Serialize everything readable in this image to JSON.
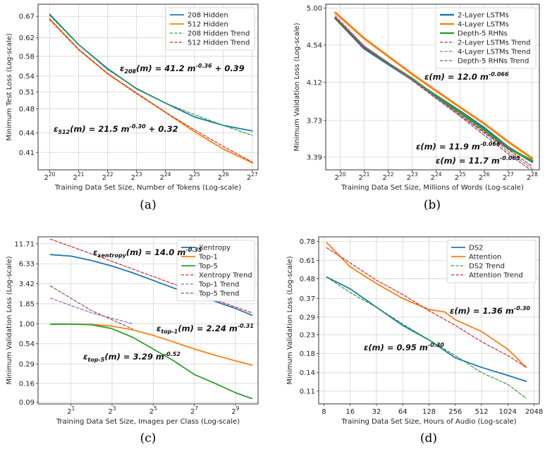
{
  "chart_data": [
    {
      "id": "a",
      "type": "line",
      "caption": "(a)",
      "xlabel": "Training Data Set Size, Number of Tokens (Log-scale)",
      "ylabel": "Minimum Test Loss (Log-scale)",
      "x_scale": "log2",
      "y_scale": "log",
      "xlim": [
        19.6,
        27.2
      ],
      "ylim": [
        0.385,
        0.7
      ],
      "xticks": [
        {
          "value": 20,
          "base": "2",
          "exp": "20"
        },
        {
          "value": 21,
          "base": "2",
          "exp": "21"
        },
        {
          "value": 22,
          "base": "2",
          "exp": "22"
        },
        {
          "value": 23,
          "base": "2",
          "exp": "23"
        },
        {
          "value": 24,
          "base": "2",
          "exp": "24"
        },
        {
          "value": 25,
          "base": "2",
          "exp": "25"
        },
        {
          "value": 26,
          "base": "2",
          "exp": "26"
        },
        {
          "value": 27,
          "base": "2",
          "exp": "27"
        }
      ],
      "yticks": [
        "0.67",
        "0.62",
        "0.58",
        "0.54",
        "0.51",
        "0.48",
        "0.44",
        "0.41"
      ],
      "legend": "top-right",
      "series": [
        {
          "name": "208 Hidden",
          "color": "#1f77b4",
          "dash": "solid",
          "width": 1.8,
          "x": [
            20,
            21,
            22,
            23,
            24,
            25,
            26,
            27
          ],
          "y": [
            0.675,
            0.605,
            0.555,
            0.516,
            0.49,
            0.466,
            0.452,
            0.443
          ]
        },
        {
          "name": "512 Hidden",
          "color": "#ff7f0e",
          "dash": "solid",
          "width": 1.8,
          "x": [
            20,
            21,
            22,
            23,
            24,
            25,
            26,
            27
          ],
          "y": [
            0.664,
            0.595,
            0.545,
            0.508,
            0.474,
            0.442,
            0.415,
            0.395
          ]
        },
        {
          "name": "208 Hidden Trend",
          "color": "#2ca02c",
          "dash": "dashed",
          "width": 1.2,
          "x": [
            20,
            21,
            22,
            23,
            24,
            25,
            26,
            27
          ],
          "y": [
            0.672,
            0.605,
            0.553,
            0.517,
            0.49,
            0.47,
            0.452,
            0.436
          ]
        },
        {
          "name": "512 Hidden Trend",
          "color": "#d62728",
          "dash": "dashed",
          "width": 1.2,
          "x": [
            20,
            21,
            22,
            23,
            24,
            25,
            26,
            27
          ],
          "y": [
            0.662,
            0.594,
            0.545,
            0.507,
            0.474,
            0.445,
            0.419,
            0.396
          ]
        }
      ],
      "annotations": [
        {
          "main": "ε",
          "sub": "208",
          "mid": "(m) = 41.2 m",
          "sup": "-0.36",
          "tail": " + 0.39"
        },
        {
          "main": "ε",
          "sub": "512",
          "mid": "(m) = 21.5 m",
          "sup": "-0.30",
          "tail": " + 0.32"
        }
      ]
    },
    {
      "id": "b",
      "type": "line",
      "caption": "(b)",
      "xlabel": "Training Data Set Size, Millions of Words (Log-scale)",
      "ylabel": "Minimum Validation Loss (Log-scale)",
      "x_scale": "log2",
      "y_scale": "log",
      "xlim": [
        19.4,
        28.3
      ],
      "ylim": [
        3.28,
        5.05
      ],
      "xticks": [
        {
          "value": 20,
          "base": "2",
          "exp": "20"
        },
        {
          "value": 21,
          "base": "2",
          "exp": "21"
        },
        {
          "value": 22,
          "base": "2",
          "exp": "22"
        },
        {
          "value": 23,
          "base": "2",
          "exp": "23"
        },
        {
          "value": 24,
          "base": "2",
          "exp": "24"
        },
        {
          "value": 25,
          "base": "2",
          "exp": "25"
        },
        {
          "value": 26,
          "base": "2",
          "exp": "26"
        },
        {
          "value": 27,
          "base": "2",
          "exp": "27"
        },
        {
          "value": 28,
          "base": "2",
          "exp": "28"
        }
      ],
      "yticks": [
        "5.00",
        "4.54",
        "4.12",
        "3.73",
        "3.39"
      ],
      "legend": "top-right",
      "series": [
        {
          "name": "2-Layer LSTMs",
          "color": "#1f77b4",
          "dash": "solid",
          "width": 3.0,
          "x": [
            19.8,
            21,
            22,
            23,
            24,
            25,
            26,
            27,
            28
          ],
          "y": [
            4.87,
            4.5,
            4.32,
            4.15,
            3.98,
            3.82,
            3.66,
            3.48,
            3.35
          ]
        },
        {
          "name": "4-Layer LSTMs",
          "color": "#ff7f0e",
          "dash": "solid",
          "width": 3.0,
          "x": [
            19.8,
            21,
            22,
            23,
            24,
            25,
            26,
            27,
            28
          ],
          "y": [
            4.94,
            4.62,
            4.41,
            4.21,
            4.03,
            3.86,
            3.7,
            3.53,
            3.38
          ]
        },
        {
          "name": "Depth-5 RHNs",
          "color": "#2ca02c",
          "dash": "solid",
          "width": 3.0,
          "x": [
            19.8,
            21,
            22,
            23,
            24,
            25,
            26,
            27,
            28
          ],
          "y": [
            4.87,
            4.52,
            4.33,
            4.16,
            3.97,
            3.81,
            3.64,
            3.47,
            3.36
          ]
        },
        {
          "name": "2-Layer LSTMs Trend",
          "color": "#d62728",
          "dash": "dashed",
          "width": 1.3,
          "x": [
            19.8,
            21,
            22,
            23,
            24,
            25,
            26,
            27,
            28
          ],
          "y": [
            4.87,
            4.51,
            4.33,
            4.15,
            3.96,
            3.79,
            3.62,
            3.46,
            3.31
          ]
        },
        {
          "name": "4-Layer LSTMs Trend",
          "color": "#9467bd",
          "dash": "dashed",
          "width": 1.3,
          "x": [
            19.8,
            21,
            22,
            23,
            24,
            25,
            26,
            27,
            28
          ],
          "y": [
            4.9,
            4.53,
            4.34,
            4.15,
            3.96,
            3.78,
            3.61,
            3.44,
            3.29
          ]
        },
        {
          "name": "Depth-5 RHNs Trend",
          "color": "#8c564b",
          "dash": "dashed",
          "width": 1.3,
          "x": [
            19.8,
            21,
            22,
            23,
            24,
            25,
            26,
            27,
            28
          ],
          "y": [
            4.88,
            4.52,
            4.33,
            4.14,
            3.95,
            3.77,
            3.59,
            3.42,
            3.27
          ]
        }
      ],
      "annotations": [
        {
          "main": "ε",
          "sub": "",
          "mid": "(m) = 12.0 m",
          "sup": "-0.066",
          "tail": ""
        },
        {
          "main": "ε",
          "sub": "",
          "mid": "(m) = 11.9 m",
          "sup": "-0.066",
          "tail": ""
        },
        {
          "main": "ε",
          "sub": "",
          "mid": "(m) = 11.7 m",
          "sup": "-0.065",
          "tail": ""
        }
      ]
    },
    {
      "id": "c",
      "type": "line",
      "caption": "(c)",
      "xlabel": "Training Data Set Size, Images per Class (Log-scale)",
      "ylabel": "Minimum Validation Loss (Log-scale)",
      "x_scale": "log2",
      "y_scale": "log",
      "xlim": [
        -0.6,
        10.1
      ],
      "ylim": [
        0.085,
        14.5
      ],
      "xticks": [
        {
          "value": 1,
          "base": "2",
          "exp": "1"
        },
        {
          "value": 3,
          "base": "2",
          "exp": "3"
        },
        {
          "value": 5,
          "base": "2",
          "exp": "5"
        },
        {
          "value": 7,
          "base": "2",
          "exp": "7"
        },
        {
          "value": 9,
          "base": "2",
          "exp": "9"
        }
      ],
      "yticks": [
        "11.71",
        "6.33",
        "3.42",
        "1.85",
        "1.00",
        "0.54",
        "0.29",
        "0.16",
        "0.09"
      ],
      "legend": "top-right",
      "series": [
        {
          "name": "Xentropy",
          "color": "#1f77b4",
          "dash": "solid",
          "width": 1.8,
          "x": [
            0,
            1,
            2,
            3,
            4,
            5,
            6,
            7,
            8,
            9,
            9.8
          ],
          "y": [
            8.4,
            8.0,
            7.0,
            5.9,
            4.8,
            3.8,
            3.0,
            2.5,
            2.0,
            1.6,
            1.3
          ]
        },
        {
          "name": "Top-1",
          "color": "#ff7f0e",
          "dash": "solid",
          "width": 1.8,
          "x": [
            0,
            1,
            2,
            3,
            4,
            5,
            6,
            7,
            8,
            9,
            9.8
          ],
          "y": [
            0.99,
            0.99,
            0.98,
            0.93,
            0.83,
            0.7,
            0.57,
            0.46,
            0.38,
            0.32,
            0.28
          ]
        },
        {
          "name": "Top-5",
          "color": "#2ca02c",
          "dash": "solid",
          "width": 1.8,
          "x": [
            0,
            1,
            2,
            3,
            4,
            5,
            6,
            7,
            8,
            9,
            9.8
          ],
          "y": [
            0.99,
            0.99,
            0.97,
            0.86,
            0.66,
            0.46,
            0.32,
            0.21,
            0.16,
            0.12,
            0.1
          ]
        },
        {
          "name": "Xentropy Trend",
          "color": "#d62728",
          "dash": "dashed",
          "width": 1.2,
          "x": [
            0,
            2,
            4,
            6,
            8,
            9.8
          ],
          "y": [
            13.5,
            8.6,
            5.4,
            3.4,
            2.1,
            1.4
          ]
        },
        {
          "name": "Top-1 Trend",
          "color": "#9467bd",
          "dash": "dashed",
          "width": 1.2,
          "x": [
            0,
            2,
            4
          ],
          "y": [
            2.2,
            1.4,
            1.0
          ]
        },
        {
          "name": "Top-5 Trend",
          "color": "#8c564b",
          "dash": "dashed",
          "width": 1.2,
          "x": [
            0,
            2,
            4
          ],
          "y": [
            3.2,
            1.5,
            0.85
          ]
        }
      ],
      "annotations": [
        {
          "main": "ε",
          "sub": "xentropy",
          "mid": "(m) = 14.0 m",
          "sup": "-0.35",
          "tail": ""
        },
        {
          "main": "ε",
          "sub": "top-1",
          "mid": "(m) = 2.24 m",
          "sup": "-0.31",
          "tail": ""
        },
        {
          "main": "ε",
          "sub": "top-5",
          "mid": "(m) = 3.29 m",
          "sup": "-0.52",
          "tail": ""
        }
      ]
    },
    {
      "id": "d",
      "type": "line",
      "caption": "(d)",
      "xlabel": "Training Data Set Size, Hours of Audio (Log-scale)",
      "ylabel": "Minimum Validation Loss (Log-scale)",
      "x_scale": "log2",
      "y_scale": "log",
      "xlim": [
        2.8,
        11.2
      ],
      "ylim": [
        0.093,
        0.83
      ],
      "xticks": [
        {
          "value": 3,
          "label": "8"
        },
        {
          "value": 4,
          "label": "16"
        },
        {
          "value": 5,
          "label": "32"
        },
        {
          "value": 6,
          "label": "64"
        },
        {
          "value": 7,
          "label": "128"
        },
        {
          "value": 8,
          "label": "256"
        },
        {
          "value": 9,
          "label": "512"
        },
        {
          "value": 10,
          "label": "1024"
        },
        {
          "value": 11,
          "label": "2048"
        }
      ],
      "yticks": [
        "0.78",
        "0.61",
        "0.48",
        "0.37",
        "0.29",
        "0.23",
        "0.18",
        "0.14",
        "0.11"
      ],
      "legend": "top-right",
      "series": [
        {
          "name": "DS2",
          "color": "#1f77b4",
          "dash": "solid",
          "width": 1.8,
          "x": [
            3.1,
            4,
            5,
            6,
            7,
            8,
            9,
            10,
            10.7
          ],
          "y": [
            0.49,
            0.42,
            0.33,
            0.26,
            0.215,
            0.17,
            0.15,
            0.135,
            0.125
          ]
        },
        {
          "name": "Attention",
          "color": "#ff7f0e",
          "dash": "solid",
          "width": 1.8,
          "x": [
            3.1,
            4,
            5,
            6,
            7,
            7.6,
            8,
            9,
            10,
            10.7
          ],
          "y": [
            0.77,
            0.56,
            0.45,
            0.37,
            0.32,
            0.31,
            0.28,
            0.24,
            0.19,
            0.15
          ]
        },
        {
          "name": "DS2 Trend",
          "color": "#2ca02c",
          "dash": "dashed",
          "width": 1.2,
          "x": [
            3.1,
            4,
            5,
            6,
            7,
            8,
            9,
            10,
            10.7
          ],
          "y": [
            0.49,
            0.4,
            0.33,
            0.265,
            0.215,
            0.175,
            0.14,
            0.12,
            0.1
          ]
        },
        {
          "name": "Attention Trend",
          "color": "#d62728",
          "dash": "dashed",
          "width": 1.2,
          "x": [
            3.1,
            4,
            5,
            6,
            7,
            8,
            9,
            10,
            10.7
          ],
          "y": [
            0.72,
            0.59,
            0.47,
            0.39,
            0.315,
            0.26,
            0.21,
            0.175,
            0.15
          ]
        }
      ],
      "annotations": [
        {
          "main": "ε",
          "sub": "",
          "mid": "(m) = 1.36 m",
          "sup": "-0.30",
          "tail": ""
        },
        {
          "main": "ε",
          "sub": "",
          "mid": "(m) = 0.95 m",
          "sup": "-0.30",
          "tail": ""
        }
      ]
    }
  ]
}
